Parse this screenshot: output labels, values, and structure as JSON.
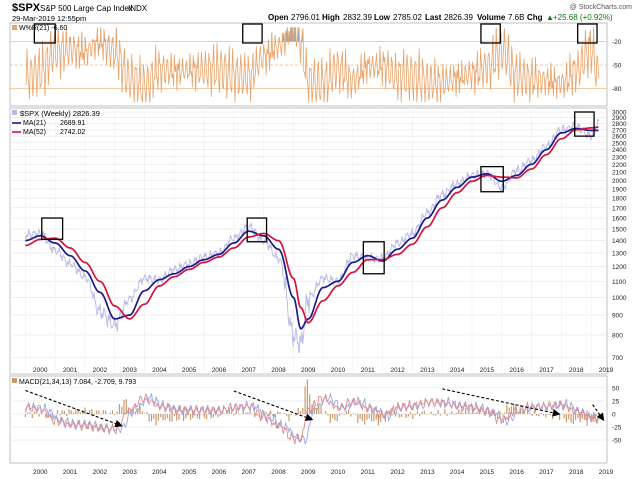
{
  "header": {
    "symbol": "$SPX",
    "name": "S&P 500 Large Cap Index",
    "exchange": "INDX",
    "date": "29-Mar-2019 12:55pm",
    "open_label": "Open",
    "open": "2796.01",
    "high_label": "High",
    "high": "2832.39",
    "low_label": "Low",
    "low": "2785.02",
    "last_label": "Last",
    "last": "2826.39",
    "volume_label": "Volume",
    "volume": "7.6B",
    "chg_label": "Chg",
    "chg": "+25.68 (+0.92%)",
    "chg_arrow": "▲",
    "watermark": "@ StockCharts.com"
  },
  "colors": {
    "price": "#b9b9e6",
    "ma21": "#1a1a8c",
    "ma52": "#d4143c",
    "wmsr": "#e8a46a",
    "macd_line": "#e08a8a",
    "signal_line": "#9aa8e0",
    "histogram": "#c89a6e",
    "box": "#000000",
    "arrow": "#000000"
  },
  "chart_data": [
    {
      "type": "line",
      "title": "W%R(21) -6.60",
      "indicator": "Williams %R (21)",
      "ylim": [
        -100,
        0
      ],
      "y_ticks": [
        "-20",
        "-50",
        "-80"
      ],
      "reference_lines": [
        -20,
        -50,
        -80
      ],
      "series": [
        {
          "name": "W%R(21)",
          "last": -6.6
        }
      ]
    },
    {
      "type": "line",
      "title": "$SPX (Weekly) 2826.39",
      "yscale": "log",
      "ylim": [
        650,
        3000
      ],
      "y_ticks": [
        700,
        800,
        900,
        1000,
        1100,
        1200,
        1300,
        1400,
        1500,
        1600,
        1700,
        1800,
        1900,
        2000,
        2100,
        2200,
        2300,
        2400,
        2500,
        2600,
        2700,
        2800,
        2900,
        3000
      ],
      "x_ticks": [
        "2000",
        "2001",
        "2002",
        "2003",
        "2004",
        "2005",
        "2006",
        "2007",
        "2008",
        "2009",
        "2010",
        "2011",
        "2012",
        "2013",
        "2014",
        "2015",
        "2016",
        "2017",
        "2018",
        "2019"
      ],
      "x": [
        2000.0,
        2000.5,
        2001.0,
        2001.5,
        2002.0,
        2002.5,
        2003.0,
        2003.5,
        2004.0,
        2004.5,
        2005.0,
        2005.5,
        2006.0,
        2006.5,
        2007.0,
        2007.5,
        2008.0,
        2008.5,
        2009.0,
        2009.25,
        2009.5,
        2010.0,
        2010.5,
        2011.0,
        2011.5,
        2012.0,
        2012.5,
        2013.0,
        2013.5,
        2014.0,
        2014.5,
        2015.0,
        2015.5,
        2016.0,
        2016.5,
        2017.0,
        2017.5,
        2018.0,
        2018.5,
        2019.0,
        2019.25
      ],
      "series": [
        {
          "name": "$SPX (Weekly)",
          "last": "2826.39",
          "values": [
            1450,
            1460,
            1320,
            1220,
            1130,
            920,
            850,
            990,
            1120,
            1110,
            1180,
            1220,
            1270,
            1300,
            1420,
            1520,
            1400,
            1260,
            800,
            760,
            990,
            1120,
            1100,
            1280,
            1260,
            1260,
            1380,
            1460,
            1650,
            1840,
            1960,
            2060,
            2080,
            1920,
            2120,
            2250,
            2450,
            2700,
            2750,
            2600,
            2826
          ]
        },
        {
          "name": "MA(21)",
          "last": "2689.91",
          "values": [
            1400,
            1440,
            1380,
            1280,
            1170,
            1030,
            880,
            900,
            1040,
            1110,
            1150,
            1200,
            1250,
            1290,
            1380,
            1480,
            1440,
            1330,
            1000,
            830,
            880,
            1060,
            1100,
            1230,
            1280,
            1240,
            1330,
            1420,
            1600,
            1780,
            1920,
            2040,
            2080,
            1990,
            2060,
            2200,
            2400,
            2650,
            2720,
            2690,
            2690
          ]
        },
        {
          "name": "MA(52)",
          "last": "2742.02",
          "values": [
            1360,
            1410,
            1420,
            1340,
            1230,
            1100,
            950,
            880,
            960,
            1070,
            1130,
            1180,
            1230,
            1270,
            1340,
            1430,
            1460,
            1400,
            1120,
            940,
            860,
            980,
            1070,
            1160,
            1250,
            1250,
            1290,
            1370,
            1520,
            1700,
            1860,
            1990,
            2060,
            2040,
            2030,
            2140,
            2330,
            2560,
            2700,
            2730,
            2742
          ]
        }
      ]
    },
    {
      "type": "line",
      "title": "MACD(21,34,13) 7.084, -2.709, 9.793",
      "ylim": [
        -90,
        65
      ],
      "y_ticks": [
        "50",
        "25",
        "0",
        "-25",
        "-50"
      ],
      "x_ticks": [
        "2000",
        "2001",
        "2002",
        "2003",
        "2004",
        "2005",
        "2006",
        "2007",
        "2008",
        "2009",
        "2010",
        "2011",
        "2012",
        "2013",
        "2014",
        "2015",
        "2016",
        "2017",
        "2018",
        "2019"
      ],
      "series": [
        {
          "name": "MACD",
          "last": "7.084"
        },
        {
          "name": "Signal",
          "last": "-2.709"
        },
        {
          "name": "Histogram",
          "last": "9.793"
        }
      ]
    }
  ]
}
